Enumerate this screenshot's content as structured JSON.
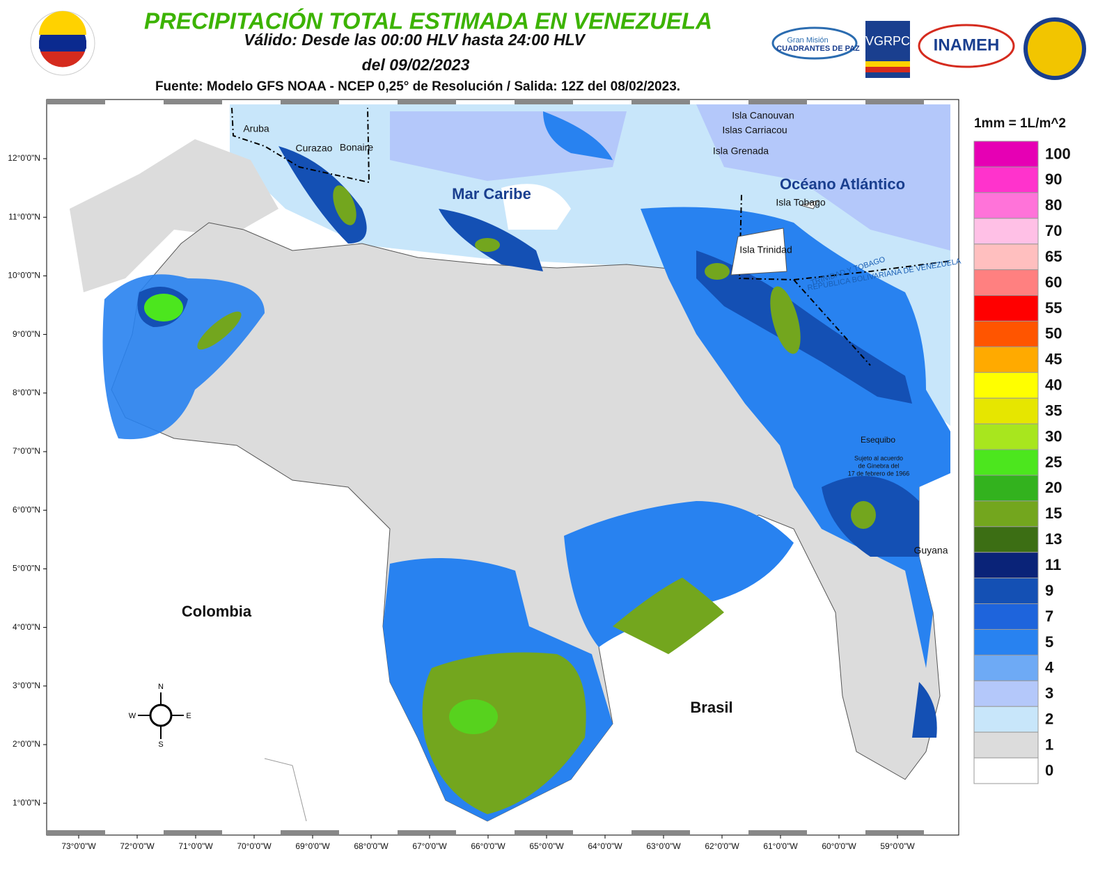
{
  "header": {
    "title": "PRECIPITACIÓN TOTAL ESTIMADA EN VENEZUELA",
    "subtitle": "Válido: Desde las 00:00 HLV hasta 24:00 HLV",
    "date": "del 09/02/2023",
    "source": "Fuente: Modelo GFS NOAA - NCEP 0,25° de Resolución / Salida: 12Z del 08/02/2023.",
    "logos": [
      "Gran Misión",
      "CUADRANTES DE PAZ",
      "VGRPC",
      "INAMEH"
    ]
  },
  "map": {
    "lat_ticks": [
      "12°0'0\"N",
      "11°0'0\"N",
      "10°0'0\"N",
      "9°0'0\"N",
      "8°0'0\"N",
      "7°0'0\"N",
      "6°0'0\"N",
      "5°0'0\"N",
      "4°0'0\"N",
      "3°0'0\"N",
      "2°0'0\"N",
      "1°0'0\"N"
    ],
    "lon_ticks": [
      "73°0'0\"W",
      "72°0'0\"W",
      "71°0'0\"W",
      "70°0'0\"W",
      "69°0'0\"W",
      "68°0'0\"W",
      "67°0'0\"W",
      "66°0'0\"W",
      "65°0'0\"W",
      "64°0'0\"W",
      "63°0'0\"W",
      "62°0'0\"W",
      "61°0'0\"W",
      "60°0'0\"W",
      "59°0'0\"W"
    ],
    "labels": {
      "aruba": "Aruba",
      "curazao": "Curazao",
      "bonaire": "Bonaire",
      "mar_caribe": "Mar Caribe",
      "oceano": "Océano Atlántico",
      "canouvan": "Isla Canouvan",
      "carriacou": "Islas Carriacou",
      "grenada": "Isla Grenada",
      "tobago": "Isla Tobago",
      "trinidad": "Isla Trinidad",
      "colombia": "Colombia",
      "brasil": "Brasil",
      "guyana": "Guyana",
      "esequibo": "Esequibo",
      "ginebra": [
        "Sujeto al acuerdo",
        "de Ginebra del",
        "17 de febrero de 1966"
      ],
      "border_tt": "TRINIDAD Y TOBAGO",
      "border_ve": "REPUBLICA BOLIVARIANA DE VENEZUELA"
    },
    "compass": {
      "n": "N",
      "s": "S",
      "e": "E",
      "w": "W"
    }
  },
  "legend": {
    "title": "1mm = 1L/m^2",
    "items": [
      {
        "value": 100,
        "color": "#e600b4"
      },
      {
        "value": 90,
        "color": "#ff33cc"
      },
      {
        "value": 80,
        "color": "#ff73d9"
      },
      {
        "value": 70,
        "color": "#ffc0e6"
      },
      {
        "value": 65,
        "color": "#ffbfbf"
      },
      {
        "value": 60,
        "color": "#ff8080"
      },
      {
        "value": 55,
        "color": "#ff0000"
      },
      {
        "value": 50,
        "color": "#ff5500"
      },
      {
        "value": 45,
        "color": "#ffaa00"
      },
      {
        "value": 40,
        "color": "#ffff00"
      },
      {
        "value": 35,
        "color": "#e6e600"
      },
      {
        "value": 30,
        "color": "#a8e61e"
      },
      {
        "value": 25,
        "color": "#4ce61e"
      },
      {
        "value": 20,
        "color": "#33b21e"
      },
      {
        "value": 15,
        "color": "#73a61e"
      },
      {
        "value": 13,
        "color": "#3c6e14"
      },
      {
        "value": 11,
        "color": "#0a2378"
      },
      {
        "value": 9,
        "color": "#1450b4"
      },
      {
        "value": 7,
        "color": "#1e64dc"
      },
      {
        "value": 5,
        "color": "#2882f0"
      },
      {
        "value": 4,
        "color": "#6eaaf5"
      },
      {
        "value": 3,
        "color": "#b4c8fa"
      },
      {
        "value": 2,
        "color": "#c8e6fa"
      },
      {
        "value": 1,
        "color": "#dcdcdc"
      },
      {
        "value": 0,
        "color": "#ffffff"
      }
    ]
  }
}
